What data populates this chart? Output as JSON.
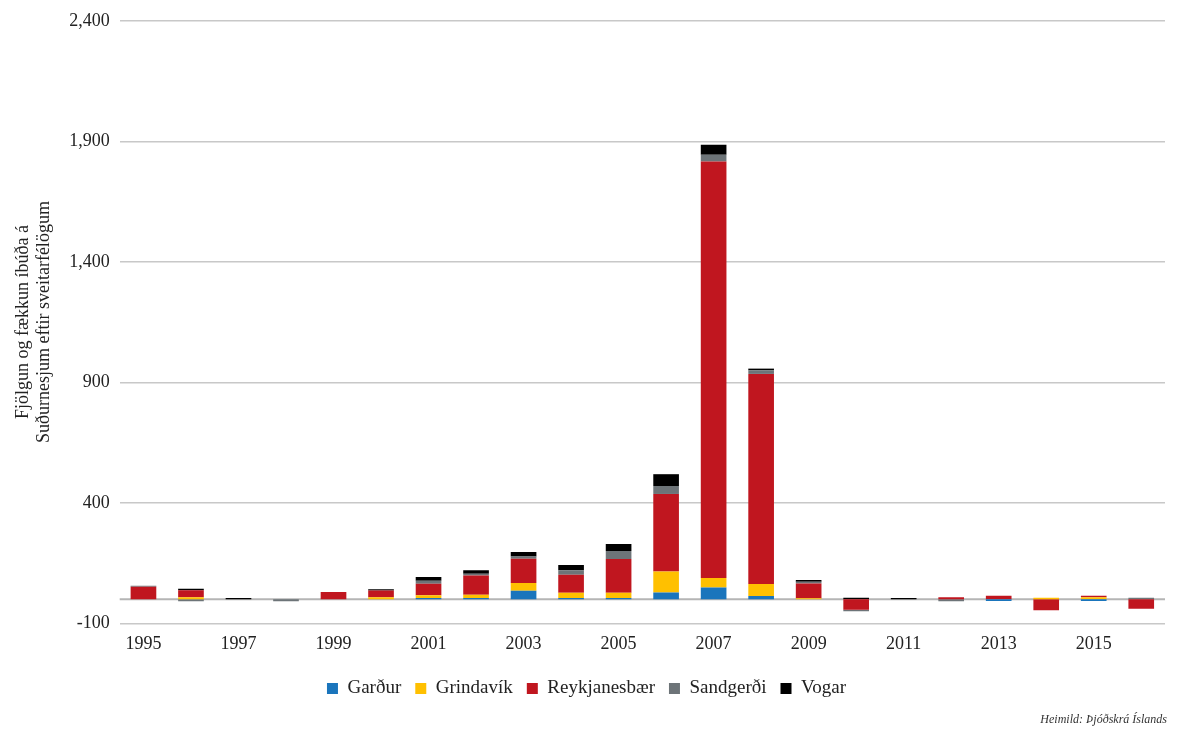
{
  "chart_data": {
    "type": "bar",
    "stacked": true,
    "ylabel": "Fjölgun og fækkun íbúða á\nSuðurnesjum eftir sveitarfélögum",
    "categories": [
      "1995",
      null,
      "1997",
      null,
      "1999",
      null,
      "2001",
      null,
      "2003",
      null,
      "2005",
      null,
      "2007",
      null,
      "2009",
      null,
      "2011",
      null,
      "2013",
      null,
      "2015",
      null
    ],
    "series": [
      {
        "name": "Garður",
        "color": "#1a75bc",
        "values": [
          null,
          null,
          null,
          null,
          null,
          null,
          5,
          5,
          35,
          5,
          5,
          28,
          49,
          14,
          null,
          null,
          null,
          null,
          -7,
          null,
          -7,
          null
        ]
      },
      {
        "name": "Grindavík",
        "color": "#ffc000",
        "values": [
          null,
          8,
          null,
          null,
          null,
          8,
          12,
          14,
          33,
          22,
          22,
          87,
          39,
          49,
          4,
          null,
          null,
          null,
          null,
          6,
          8,
          null
        ]
      },
      {
        "name": "Reykjanesbær",
        "color": "#c0161f",
        "values": [
          52,
          30,
          null,
          null,
          30,
          28,
          48,
          80,
          100,
          75,
          140,
          322,
          1728,
          872,
          62,
          -43,
          null,
          8,
          15,
          -45,
          7,
          -39
        ]
      },
      {
        "name": "Sandgerði",
        "color": "#6d7478",
        "values": [
          4,
          -8,
          null,
          -8,
          null,
          null,
          12,
          7,
          10,
          19,
          33,
          33,
          28,
          15,
          7,
          -7,
          null,
          -8,
          null,
          null,
          null,
          6
        ]
      },
      {
        "name": "Vogar",
        "color": "#000000",
        "values": [
          null,
          6,
          5,
          null,
          null,
          6,
          15,
          14,
          18,
          21,
          29,
          49,
          42,
          7,
          7,
          6,
          5,
          null,
          null,
          null,
          null,
          null
        ]
      }
    ],
    "ylim": [
      -100,
      2400
    ],
    "yticks": [
      -100,
      400,
      900,
      {
        "value": 1400,
        "label": "1,400"
      },
      {
        "value": 1900,
        "label": "1,900"
      },
      {
        "value": 2400,
        "label": "2,400"
      }
    ],
    "grid": "y",
    "legend": "bottom",
    "annotations": [
      "Heimild: Þjóðskrá Íslands"
    ]
  }
}
